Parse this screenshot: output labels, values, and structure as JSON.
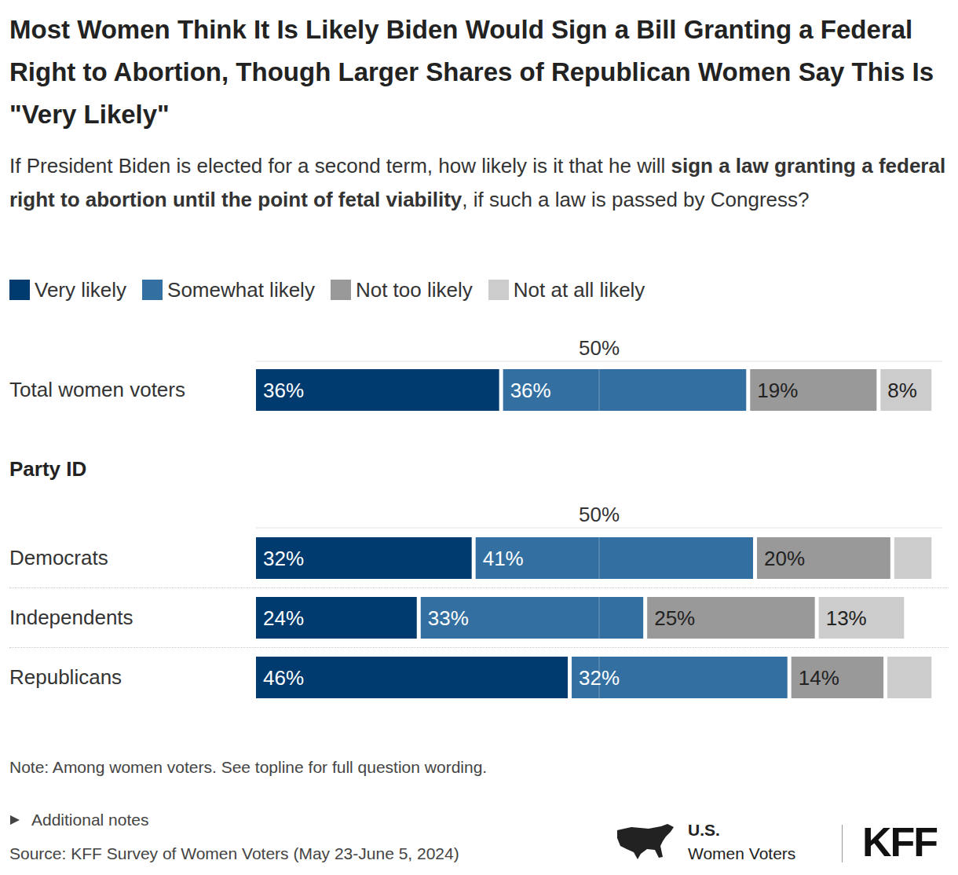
{
  "title": "Most Women Think It Is Likely Biden Would Sign a Bill Granting a Federal Right to Abortion, Though Larger Shares of Republican Women Say This Is \"Very Likely\"",
  "subtitle": [
    "If President Biden is elected for a second term, how likely is it that he will ",
    "sign a law granting a federal right to abortion until the point of fetal viability",
    ", if such a law is passed by Congress?"
  ],
  "note": "Note: Among women voters. See topline for full question wording.",
  "additional_notes": "Additional notes",
  "source": "Source: KFF Survey of Women Voters (May 23-June 5, 2024)",
  "branding": [
    "U.S.",
    "Women Voters",
    "KFF"
  ],
  "chart_data": [
    {
      "type": "bar",
      "orientation": "horizontal",
      "stacked": true,
      "data_labels": true,
      "legend": "top",
      "grid": true,
      "categories": [
        "Total women voters"
      ],
      "series": [
        {
          "name": "Very likely",
          "color": "#003b6f",
          "values": [
            36
          ],
          "value_labels": [
            "36%"
          ]
        },
        {
          "name": "Somewhat likely",
          "color": "#3370a1",
          "values": [
            36
          ],
          "value_labels": [
            "36%"
          ]
        },
        {
          "name": "Not too likely",
          "color": "#999999",
          "values": [
            19
          ],
          "value_labels": [
            "19%"
          ]
        },
        {
          "name": "Not at all likely",
          "color": "#cccccc",
          "values": [
            8
          ],
          "value_labels": [
            "8%"
          ]
        }
      ],
      "xlim": [
        0,
        100
      ],
      "xticks": [
        {
          "value": 50,
          "label": "50%"
        }
      ]
    },
    {
      "type": "bar",
      "title": "Party ID",
      "orientation": "horizontal",
      "stacked": true,
      "data_labels": true,
      "grid": true,
      "categories": [
        "Democrats",
        "Independents",
        "Republicans"
      ],
      "series": [
        {
          "name": "Very likely",
          "color": "#003b6f",
          "values": [
            32,
            24,
            46
          ],
          "value_labels": [
            "32%",
            "24%",
            "46%"
          ]
        },
        {
          "name": "Somewhat likely",
          "color": "#3370a1",
          "values": [
            41,
            33,
            32
          ],
          "value_labels": [
            "41%",
            "33%",
            "32%"
          ]
        },
        {
          "name": "Not too likely",
          "color": "#999999",
          "values": [
            20,
            25,
            14
          ],
          "value_labels": [
            "20%",
            "25%",
            "14%"
          ]
        },
        {
          "name": "Not at all likely",
          "color": "#cccccc",
          "values": [
            6,
            13,
            7
          ],
          "value_labels": [
            null,
            "13%",
            null
          ]
        }
      ],
      "xlim": [
        0,
        100
      ],
      "xticks": [
        {
          "value": 50,
          "label": "50%"
        }
      ]
    }
  ]
}
